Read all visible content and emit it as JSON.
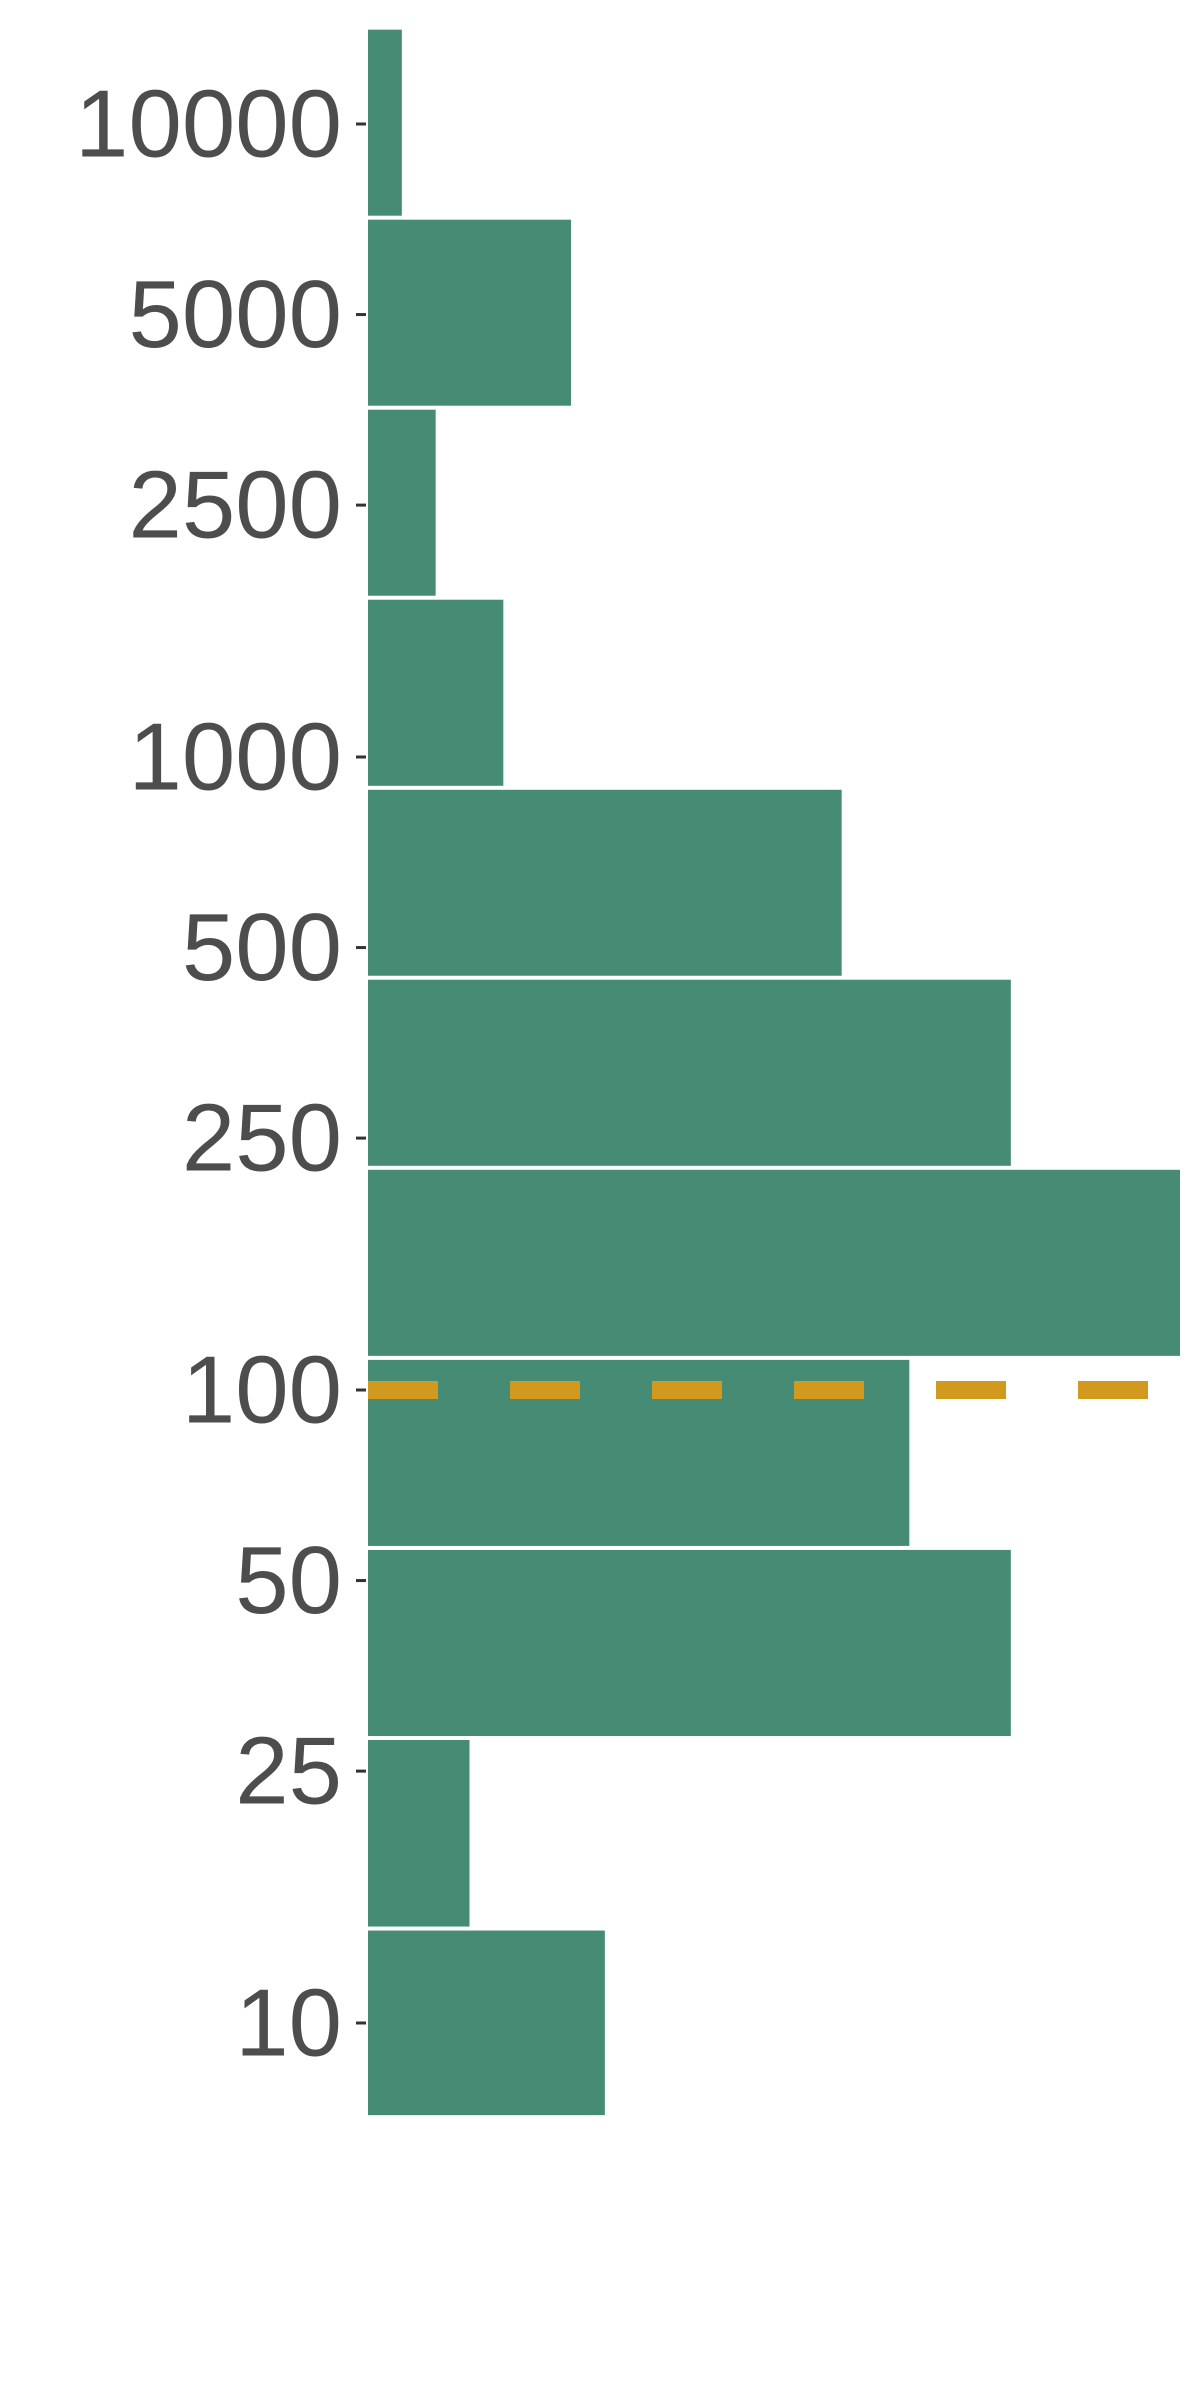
{
  "chart_data": {
    "type": "bar",
    "orientation": "horizontal-histogram",
    "y_scale": "log",
    "y_ticks": [
      10,
      25,
      50,
      100,
      250,
      500,
      1000,
      2500,
      5000,
      10000
    ],
    "y_tick_labels": [
      "10",
      "25",
      "50",
      "100",
      "250",
      "500",
      "1000",
      "2500",
      "5000",
      "10000"
    ],
    "bins": [
      {
        "low": 7.1,
        "high": 14.1,
        "count": 7
      },
      {
        "low": 14.1,
        "high": 28.2,
        "count": 3
      },
      {
        "low": 28.2,
        "high": 56.3,
        "count": 19
      },
      {
        "low": 56.3,
        "high": 112.4,
        "count": 16
      },
      {
        "low": 112.4,
        "high": 224.4,
        "count": 24
      },
      {
        "low": 224.4,
        "high": 448,
        "count": 19
      },
      {
        "low": 448,
        "high": 894,
        "count": 14
      },
      {
        "low": 894,
        "high": 1785,
        "count": 4
      },
      {
        "low": 1785,
        "high": 3563,
        "count": 2
      },
      {
        "low": 3563,
        "high": 7112,
        "count": 6
      },
      {
        "low": 7112,
        "high": 14197,
        "count": 1
      }
    ],
    "x_max_count": 24,
    "reference_line": {
      "value": 100,
      "style": "dashed"
    },
    "grid": false,
    "colors": {
      "bar": "#468b73",
      "reference_line": "#d19a1e",
      "tick_label": "#4d4d4d",
      "background": "#ffffff"
    }
  }
}
